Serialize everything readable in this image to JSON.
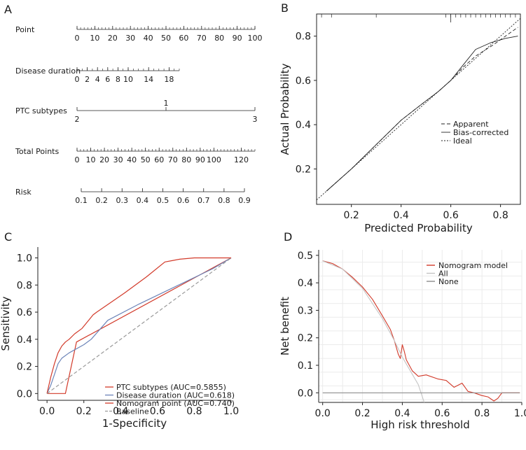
{
  "panels": {
    "A": {
      "letter": "A"
    },
    "B": {
      "letter": "B"
    },
    "C": {
      "letter": "C"
    },
    "D": {
      "letter": "D"
    }
  },
  "colors": {
    "ink": "#1a1a1a",
    "axis": "#222222",
    "grid": "#ebebeb",
    "red": "#d23a2a",
    "blue": "#6c84b8",
    "dashgray": "#9a9a9a",
    "gray": "#8c8c8c",
    "lightgray": "#c4c4c4"
  },
  "chart_data": [
    {
      "panel": "A",
      "type": "nomogram",
      "rows": [
        {
          "label": "Point",
          "scale_min": 0,
          "scale_max": 100,
          "ticks": [
            {
              "v": 0,
              "t": "0"
            },
            {
              "v": 10,
              "t": "10"
            },
            {
              "v": 20,
              "t": "20"
            },
            {
              "v": 30,
              "t": "30"
            },
            {
              "v": 40,
              "t": "40"
            },
            {
              "v": 50,
              "t": "50"
            },
            {
              "v": 60,
              "t": "60"
            },
            {
              "v": 70,
              "t": "70"
            },
            {
              "v": 80,
              "t": "80"
            },
            {
              "v": 90,
              "t": "90"
            },
            {
              "v": 100,
              "t": "100"
            }
          ]
        },
        {
          "label": "Disease duration",
          "scale_min": 0,
          "scale_max": 20,
          "ticks": [
            {
              "v": 0,
              "t": "0"
            },
            {
              "v": 2,
              "t": "2"
            },
            {
              "v": 4,
              "t": "4"
            },
            {
              "v": 6,
              "t": "6"
            },
            {
              "v": 8,
              "t": "8"
            },
            {
              "v": 10,
              "t": "10"
            },
            {
              "v": 14,
              "t": "14"
            },
            {
              "v": 18,
              "t": "18"
            }
          ]
        },
        {
          "label": "PTC subtypes",
          "scale_min": 0,
          "scale_max": 100,
          "ticks": [
            {
              "v": 0,
              "t": "2",
              "pos": "below"
            },
            {
              "v": 50,
              "t": "1",
              "pos": "above"
            },
            {
              "v": 100,
              "t": "3",
              "pos": "below"
            }
          ]
        },
        {
          "label": "Total Points",
          "scale_min": 0,
          "scale_max": 130,
          "ticks": [
            {
              "v": 0,
              "t": "0"
            },
            {
              "v": 10,
              "t": "10"
            },
            {
              "v": 20,
              "t": "20"
            },
            {
              "v": 30,
              "t": "30"
            },
            {
              "v": 40,
              "t": "40"
            },
            {
              "v": 50,
              "t": "50"
            },
            {
              "v": 60,
              "t": "60"
            },
            {
              "v": 70,
              "t": "70"
            },
            {
              "v": 80,
              "t": "80"
            },
            {
              "v": 90,
              "t": "90"
            },
            {
              "v": 100,
              "t": "100"
            },
            {
              "v": 120,
              "t": "120"
            }
          ]
        },
        {
          "label": "Risk",
          "scale_min": 0.1,
          "scale_max": 0.9,
          "ticks": [
            {
              "v": 0.1,
              "t": "0.1"
            },
            {
              "v": 0.2,
              "t": "0.2"
            },
            {
              "v": 0.3,
              "t": "0.3"
            },
            {
              "v": 0.4,
              "t": "0.4"
            },
            {
              "v": 0.5,
              "t": "0.5"
            },
            {
              "v": 0.6,
              "t": "0.6"
            },
            {
              "v": 0.7,
              "t": "0.7"
            },
            {
              "v": 0.8,
              "t": "0.8"
            },
            {
              "v": 0.9,
              "t": "0.9"
            }
          ]
        }
      ]
    },
    {
      "panel": "B",
      "type": "line",
      "title": "",
      "xlabel": "Predicted Probability",
      "ylabel": "Actual Probability",
      "xlim": [
        0.06,
        0.88
      ],
      "ylim": [
        0.04,
        0.9
      ],
      "xticks": [
        0.2,
        0.4,
        0.6,
        0.8
      ],
      "yticks": [
        0.2,
        0.4,
        0.6,
        0.8
      ],
      "legend": [
        "Apparent",
        "Bias-corrected",
        "Ideal"
      ],
      "legend_position": "right-center",
      "series": [
        {
          "name": "Apparent",
          "style": "dash",
          "x": [
            0.1,
            0.2,
            0.3,
            0.4,
            0.48,
            0.55,
            0.6,
            0.65,
            0.7,
            0.77,
            0.82,
            0.87
          ],
          "y": [
            0.1,
            0.2,
            0.31,
            0.42,
            0.49,
            0.55,
            0.6,
            0.66,
            0.71,
            0.76,
            0.8,
            0.84
          ]
        },
        {
          "name": "Bias-corrected",
          "style": "solid",
          "x": [
            0.1,
            0.2,
            0.3,
            0.4,
            0.48,
            0.55,
            0.6,
            0.65,
            0.7,
            0.76,
            0.82,
            0.87
          ],
          "y": [
            0.1,
            0.2,
            0.31,
            0.42,
            0.49,
            0.55,
            0.6,
            0.67,
            0.74,
            0.77,
            0.79,
            0.8
          ]
        },
        {
          "name": "Ideal",
          "style": "dot",
          "x": [
            0.06,
            0.88
          ],
          "y": [
            0.06,
            0.88
          ]
        }
      ]
    },
    {
      "panel": "C",
      "type": "line",
      "title": "",
      "xlabel": "1-Specificity",
      "ylabel": "Sensitivity",
      "xlim": [
        -0.05,
        1.0
      ],
      "ylim": [
        -0.05,
        1.08
      ],
      "xticks": [
        0.0,
        0.2,
        0.4,
        0.6,
        0.8,
        1.0
      ],
      "yticks": [
        0.0,
        0.2,
        0.4,
        0.6,
        0.8,
        1.0
      ],
      "legend": [
        "PTC subtypes (AUC=0.5855)",
        "Disease duration (AUC=0.618)",
        "Nomogram point (AUC=0.740)",
        "Baseline"
      ],
      "legend_position": "bottom-right",
      "series": [
        {
          "name": "PTC subtypes (AUC=0.5855)",
          "color_key": "red",
          "style": "solid",
          "x": [
            0.0,
            0.1,
            0.16,
            1.0
          ],
          "y": [
            0.0,
            0.0,
            0.38,
            1.0
          ]
        },
        {
          "name": "Disease duration (AUC=0.618)",
          "color_key": "blue",
          "style": "solid",
          "x": [
            0.0,
            0.02,
            0.04,
            0.06,
            0.08,
            0.12,
            0.2,
            0.24,
            0.33,
            0.5,
            0.7,
            0.9,
            1.0
          ],
          "y": [
            0.0,
            0.06,
            0.14,
            0.22,
            0.26,
            0.3,
            0.36,
            0.4,
            0.54,
            0.66,
            0.79,
            0.92,
            1.0
          ]
        },
        {
          "name": "Nomogram point (AUC=0.740)",
          "color_key": "red",
          "style": "solid",
          "x": [
            0.0,
            0.02,
            0.04,
            0.05,
            0.06,
            0.08,
            0.1,
            0.12,
            0.15,
            0.19,
            0.25,
            0.27,
            0.42,
            0.54,
            0.64,
            0.68,
            0.72,
            0.8,
            1.0
          ],
          "y": [
            0.0,
            0.12,
            0.22,
            0.26,
            0.3,
            0.35,
            0.38,
            0.4,
            0.44,
            0.48,
            0.58,
            0.6,
            0.74,
            0.86,
            0.97,
            0.98,
            0.99,
            1.0,
            1.0
          ]
        },
        {
          "name": "Baseline",
          "color_key": "dashgray",
          "style": "dash",
          "x": [
            0.0,
            1.0
          ],
          "y": [
            0.0,
            1.0
          ]
        }
      ]
    },
    {
      "panel": "D",
      "type": "line",
      "title": "",
      "xlabel": "High risk threshold",
      "ylabel": "Net benefit",
      "xlim": [
        -0.02,
        1.0
      ],
      "ylim": [
        -0.035,
        0.52
      ],
      "xticks": [
        0.0,
        0.2,
        0.4,
        0.6,
        0.8,
        1.0
      ],
      "yticks": [
        0.0,
        0.1,
        0.2,
        0.3,
        0.4,
        0.5
      ],
      "grid": true,
      "legend": [
        "Nomogram model",
        "All",
        "None"
      ],
      "legend_position": "top-right",
      "series": [
        {
          "name": "Nomogram model",
          "color_key": "red",
          "style": "solid",
          "x": [
            0.0,
            0.05,
            0.1,
            0.15,
            0.2,
            0.25,
            0.3,
            0.34,
            0.36,
            0.38,
            0.39,
            0.4,
            0.41,
            0.42,
            0.45,
            0.48,
            0.52,
            0.58,
            0.62,
            0.66,
            0.7,
            0.73,
            0.76,
            0.8,
            0.83,
            0.86,
            0.88,
            0.9,
            0.99
          ],
          "y": [
            0.48,
            0.47,
            0.45,
            0.42,
            0.385,
            0.34,
            0.28,
            0.23,
            0.19,
            0.14,
            0.125,
            0.175,
            0.15,
            0.12,
            0.08,
            0.06,
            0.065,
            0.05,
            0.045,
            0.02,
            0.035,
            0.005,
            0.0,
            -0.01,
            -0.015,
            -0.03,
            -0.02,
            0.0,
            0.0
          ]
        },
        {
          "name": "All",
          "color_key": "lightgray",
          "style": "solid",
          "x": [
            0.0,
            0.1,
            0.2,
            0.3,
            0.36,
            0.4,
            0.44,
            0.48,
            0.51
          ],
          "y": [
            0.48,
            0.45,
            0.38,
            0.27,
            0.19,
            0.13,
            0.08,
            0.03,
            -0.035
          ]
        },
        {
          "name": "None",
          "color_key": "gray",
          "style": "solid",
          "x": [
            0.0,
            0.99
          ],
          "y": [
            0.0,
            0.0
          ]
        }
      ]
    }
  ]
}
